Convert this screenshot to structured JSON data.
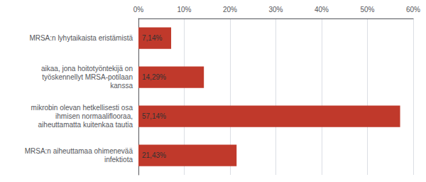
{
  "chart_data": {
    "type": "bar",
    "orientation": "horizontal",
    "categories": [
      "MRSA:n lyhytaikaista eristämistä",
      "aikaa, jona hoitotyöntekijä on\ntyöskennellyt MRSA-potilaan\nkanssa",
      "mikrobin olevan hetkellisesti osa\nihmisen normaaliflooraa,\naiheuttamatta kuitenkaa tautia",
      "MRSA:n aiheuttamaa ohimenevää\ninfektiota"
    ],
    "values": [
      7.14,
      14.29,
      57.14,
      21.43
    ],
    "value_labels": [
      "7,14%",
      "14,29%",
      "57,14%",
      "21,43%"
    ],
    "data_labels": true,
    "color": "#c0392b",
    "xlim": [
      0,
      60
    ],
    "xticks": [
      {
        "value": 0,
        "label": "0%"
      },
      {
        "value": 10,
        "label": "10%"
      },
      {
        "value": 20,
        "label": "20%"
      },
      {
        "value": 30,
        "label": "30%"
      },
      {
        "value": 40,
        "label": "40%"
      },
      {
        "value": 50,
        "label": "50%"
      },
      {
        "value": 60,
        "label": "60%"
      }
    ],
    "grid": true
  }
}
